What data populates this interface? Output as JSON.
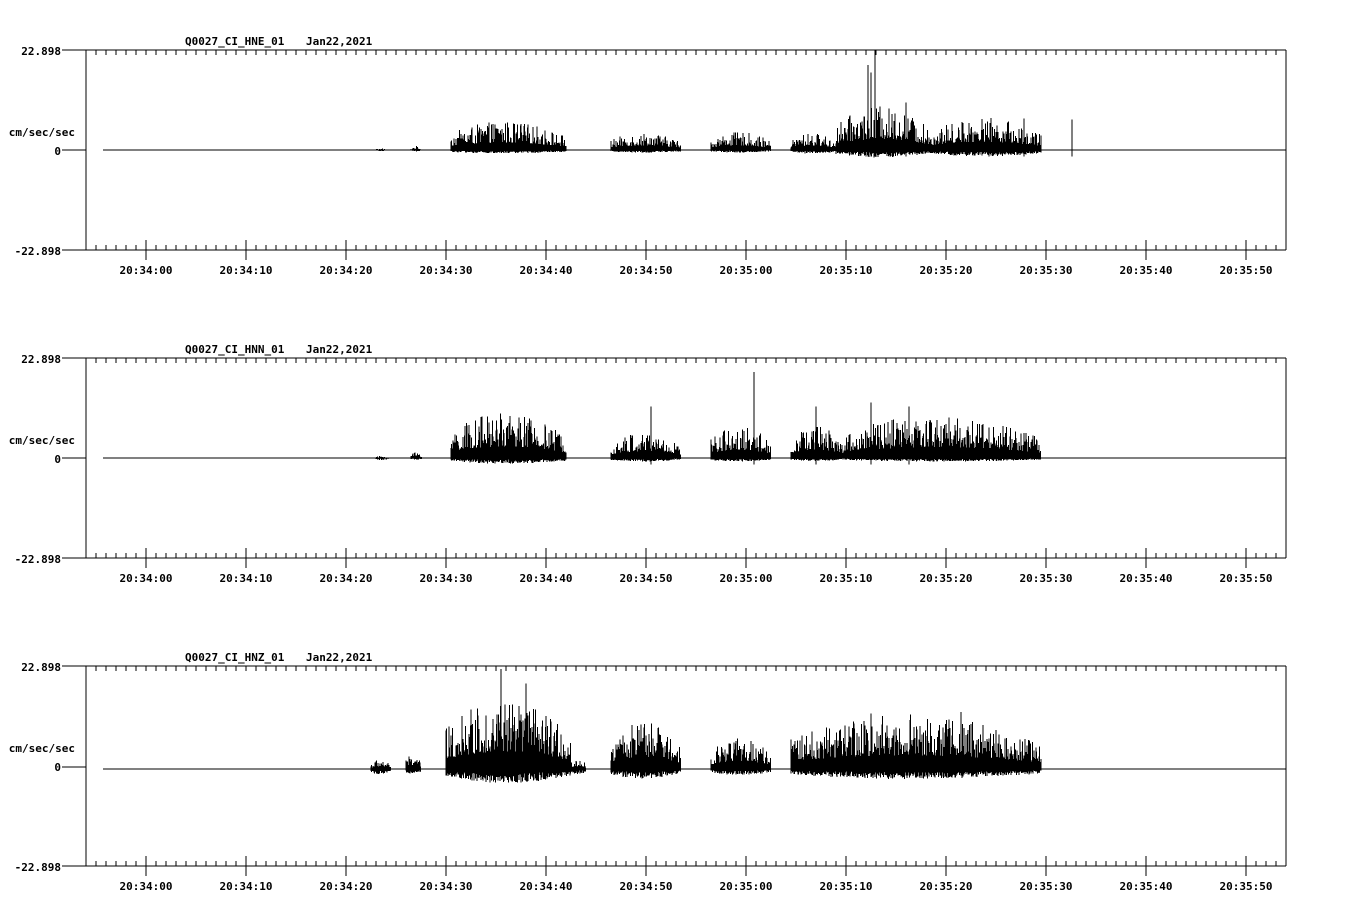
{
  "chart_data": [
    {
      "type": "line",
      "title": "Q0027_CI_HNE_01  Jan22,2021",
      "station": "Q0027_CI_HNE_01",
      "date": "Jan22,2021",
      "ylabel": "cm/sec/sec",
      "ylim": [
        -22.898,
        22.898
      ],
      "ytick_labels": [
        "22.898",
        "0",
        "-22.898"
      ],
      "xlabel": "",
      "xtick_labels": [
        "20:34:00",
        "20:34:10",
        "20:34:20",
        "20:34:30",
        "20:34:40",
        "20:34:50",
        "20:35:00",
        "20:35:10",
        "20:35:20",
        "20:35:30",
        "20:35:40",
        "20:35:50"
      ],
      "grid": false,
      "signal_bursts": [
        {
          "start": 29.0,
          "end": 30.0,
          "peak": 0.4,
          "neg": 0.3
        },
        {
          "start": 32.5,
          "end": 33.5,
          "peak": 0.9,
          "neg": 0.3
        },
        {
          "start": 36.5,
          "end": 48.0,
          "peak": 6.6,
          "neg": 0.8
        },
        {
          "start": 52.5,
          "end": 59.5,
          "peak": 4.0,
          "neg": 0.6
        },
        {
          "start": 62.5,
          "end": 68.5,
          "peak": 4.1,
          "neg": 0.6
        },
        {
          "start": 70.5,
          "end": 75.0,
          "peak": 3.9,
          "neg": 0.8
        },
        {
          "start": 75.0,
          "end": 84.5,
          "peak": 10.0,
          "neg": 1.7
        },
        {
          "start": 84.5,
          "end": 95.5,
          "peak": 7.5,
          "neg": 1.5
        }
      ],
      "peak_events": [
        {
          "t": 78.2,
          "value": 19.5
        },
        {
          "t": 78.5,
          "value": 17.8
        },
        {
          "t": 78.9,
          "value": 22.9
        },
        {
          "t": 82.0,
          "value": 10.9
        },
        {
          "t": 93.8,
          "value": 7.2
        },
        {
          "t": 98.6,
          "value": 7.0
        }
      ]
    },
    {
      "type": "line",
      "title": "Q0027_CI_HNN_01  Jan22,2021",
      "station": "Q0027_CI_HNN_01",
      "date": "Jan22,2021",
      "ylabel": "cm/sec/sec",
      "ylim": [
        -22.898,
        22.898
      ],
      "ytick_labels": [
        "22.898",
        "0",
        "-22.898"
      ],
      "xtick_labels": [
        "20:34:00",
        "20:34:10",
        "20:34:20",
        "20:34:30",
        "20:34:40",
        "20:34:50",
        "20:35:00",
        "20:35:10",
        "20:35:20",
        "20:35:30",
        "20:35:40",
        "20:35:50"
      ],
      "grid": false,
      "signal_bursts": [
        {
          "start": 29.0,
          "end": 30.2,
          "peak": 0.5,
          "neg": 0.5
        },
        {
          "start": 32.5,
          "end": 33.6,
          "peak": 1.5,
          "neg": 0.4
        },
        {
          "start": 36.5,
          "end": 48.0,
          "peak": 10.4,
          "neg": 1.3
        },
        {
          "start": 52.5,
          "end": 59.5,
          "peak": 6.0,
          "neg": 0.8
        },
        {
          "start": 62.5,
          "end": 68.5,
          "peak": 7.6,
          "neg": 0.8
        },
        {
          "start": 70.5,
          "end": 76.0,
          "peak": 7.5,
          "neg": 0.7
        },
        {
          "start": 76.0,
          "end": 95.5,
          "peak": 10.0,
          "neg": 0.8
        }
      ],
      "peak_events": [
        {
          "t": 56.5,
          "value": 11.8
        },
        {
          "t": 66.8,
          "value": 19.7
        },
        {
          "t": 73.0,
          "value": 11.8
        },
        {
          "t": 78.5,
          "value": 12.7
        },
        {
          "t": 82.3,
          "value": 11.8
        }
      ]
    },
    {
      "type": "line",
      "title": "Q0027_CI_HNZ_01  Jan22,2021",
      "station": "Q0027_CI_HNZ_01",
      "date": "Jan22,2021",
      "ylabel": "cm/sec/sec",
      "ylim": [
        -22.898,
        22.898
      ],
      "ytick_labels": [
        "22.898",
        "0",
        "-22.898"
      ],
      "xtick_labels": [
        "20:34:00",
        "20:34:10",
        "20:34:20",
        "20:34:30",
        "20:34:40",
        "20:34:50",
        "20:35:00",
        "20:35:10",
        "20:35:20",
        "20:35:30",
        "20:35:40",
        "20:35:50"
      ],
      "grid": false,
      "signal_bursts": [
        {
          "start": 28.5,
          "end": 30.5,
          "peak": 2.2,
          "neg": 1.3
        },
        {
          "start": 32.0,
          "end": 33.5,
          "peak": 3.4,
          "neg": 1.2
        },
        {
          "start": 36.0,
          "end": 48.5,
          "peak": 16.0,
          "neg": 3.2
        },
        {
          "start": 48.5,
          "end": 50.0,
          "peak": 2.4,
          "neg": 1.3
        },
        {
          "start": 52.5,
          "end": 59.5,
          "peak": 11.0,
          "neg": 2.2
        },
        {
          "start": 62.5,
          "end": 68.5,
          "peak": 7.2,
          "neg": 1.4
        },
        {
          "start": 70.5,
          "end": 95.5,
          "peak": 12.5,
          "neg": 2.3
        }
      ],
      "peak_events": [
        {
          "t": 41.5,
          "value": 22.9
        },
        {
          "t": 44.0,
          "value": 19.6
        },
        {
          "t": 78.5,
          "value": 12.7
        },
        {
          "t": 87.5,
          "value": 13.0
        }
      ]
    }
  ],
  "panels": [
    {
      "title_station": "Q0027_CI_HNE_01",
      "title_date": "Jan22,2021",
      "ylabel": "cm/sec/sec",
      "ymax_label": "22.898",
      "zero_label": "0",
      "ymin_label": "-22.898"
    },
    {
      "title_station": "Q0027_CI_HNN_01",
      "title_date": "Jan22,2021",
      "ylabel": "cm/sec/sec",
      "ymax_label": "22.898",
      "zero_label": "0",
      "ymin_label": "-22.898"
    },
    {
      "title_station": "Q0027_CI_HNZ_01",
      "title_date": "Jan22,2021",
      "ylabel": "cm/sec/sec",
      "ymax_label": "22.898",
      "zero_label": "0",
      "ymin_label": "-22.898"
    }
  ],
  "time_axis": {
    "labels": [
      "20:34:00",
      "20:34:10",
      "20:34:20",
      "20:34:30",
      "20:34:40",
      "20:34:50",
      "20:35:00",
      "20:35:10",
      "20:35:20",
      "20:35:30",
      "20:35:40",
      "20:35:50"
    ]
  },
  "colors": {
    "trace": "#000000",
    "axis": "#000000",
    "background": "#ffffff"
  }
}
